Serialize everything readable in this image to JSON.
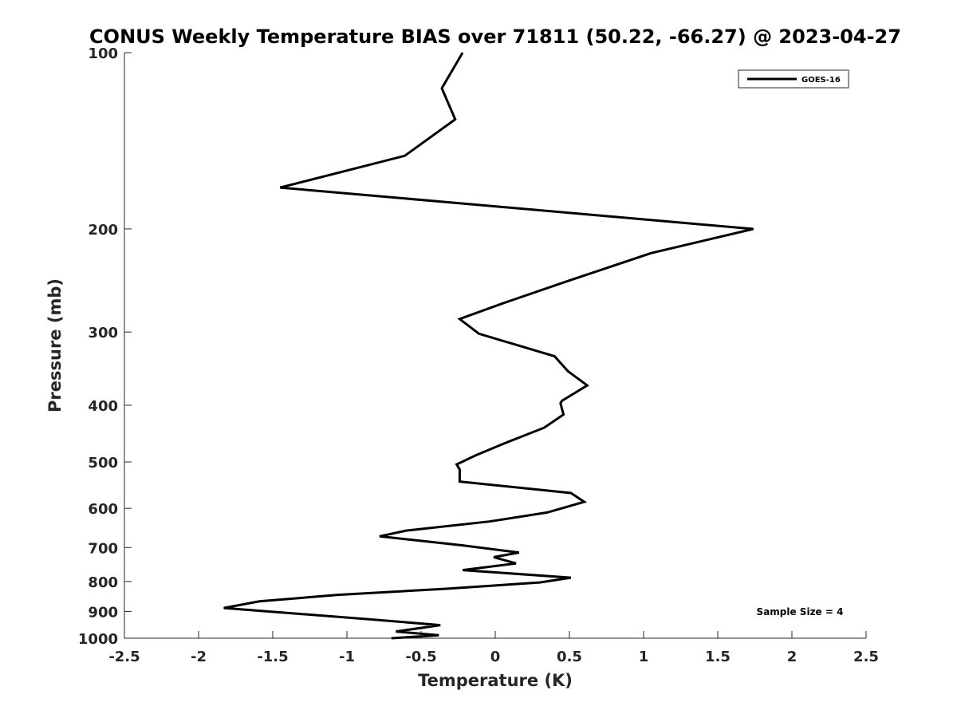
{
  "chart_data": {
    "type": "line",
    "title": "CONUS Weekly Temperature BIAS over 71811 (50.22, -66.27) @ 2023-04-27",
    "xlabel": "Temperature (K)",
    "ylabel": "Pressure (mb)",
    "xlim": [
      -2.5,
      2.5
    ],
    "ylim": [
      100,
      1000
    ],
    "yscale": "log",
    "yreversed": true,
    "x_ticks": [
      -2.5,
      -2,
      -1.5,
      -1,
      -0.5,
      0,
      0.5,
      1,
      1.5,
      2,
      2.5
    ],
    "x_tick_labels": [
      "-2.5",
      "-2",
      "-1.5",
      "-1",
      "-0.5",
      "0",
      "0.5",
      "1",
      "1.5",
      "2",
      "2.5"
    ],
    "y_ticks": [
      100,
      200,
      300,
      400,
      500,
      600,
      700,
      800,
      900,
      1000
    ],
    "y_tick_labels": [
      "100",
      "200",
      "300",
      "400",
      "500",
      "600",
      "700",
      "800",
      "900",
      "1000"
    ],
    "grid": false,
    "legend_position": "top-right",
    "series": [
      {
        "name": "GOES-16",
        "color": "#000000",
        "temperature": [
          -0.22,
          -0.36,
          -0.27,
          -0.61,
          -1.45,
          1.74,
          1.05,
          0.5,
          0.05,
          -0.24,
          -0.11,
          0.4,
          0.49,
          0.62,
          0.45,
          0.44,
          0.46,
          0.33,
          0.06,
          -0.13,
          -0.26,
          -0.24,
          -0.24,
          0.51,
          0.6,
          0.35,
          -0.04,
          -0.6,
          -0.78,
          -0.22,
          0.16,
          -0.01,
          0.14,
          -0.22,
          0.51,
          0.3,
          -0.32,
          -1.06,
          -1.59,
          -1.83,
          -0.85,
          -0.37,
          -0.67,
          -0.38,
          -0.7
        ],
        "pressure": [
          100,
          115,
          130,
          150,
          170,
          200,
          220,
          245,
          268,
          285,
          302,
          330,
          350,
          370,
          393,
          397,
          415,
          437,
          465,
          487,
          505,
          515,
          540,
          565,
          585,
          610,
          632,
          655,
          670,
          694,
          714,
          727,
          745,
          765,
          788,
          803,
          823,
          843,
          865,
          888,
          928,
          950,
          974,
          988,
          1005
        ]
      }
    ],
    "annotations": [
      "Sample Size = 4"
    ]
  }
}
